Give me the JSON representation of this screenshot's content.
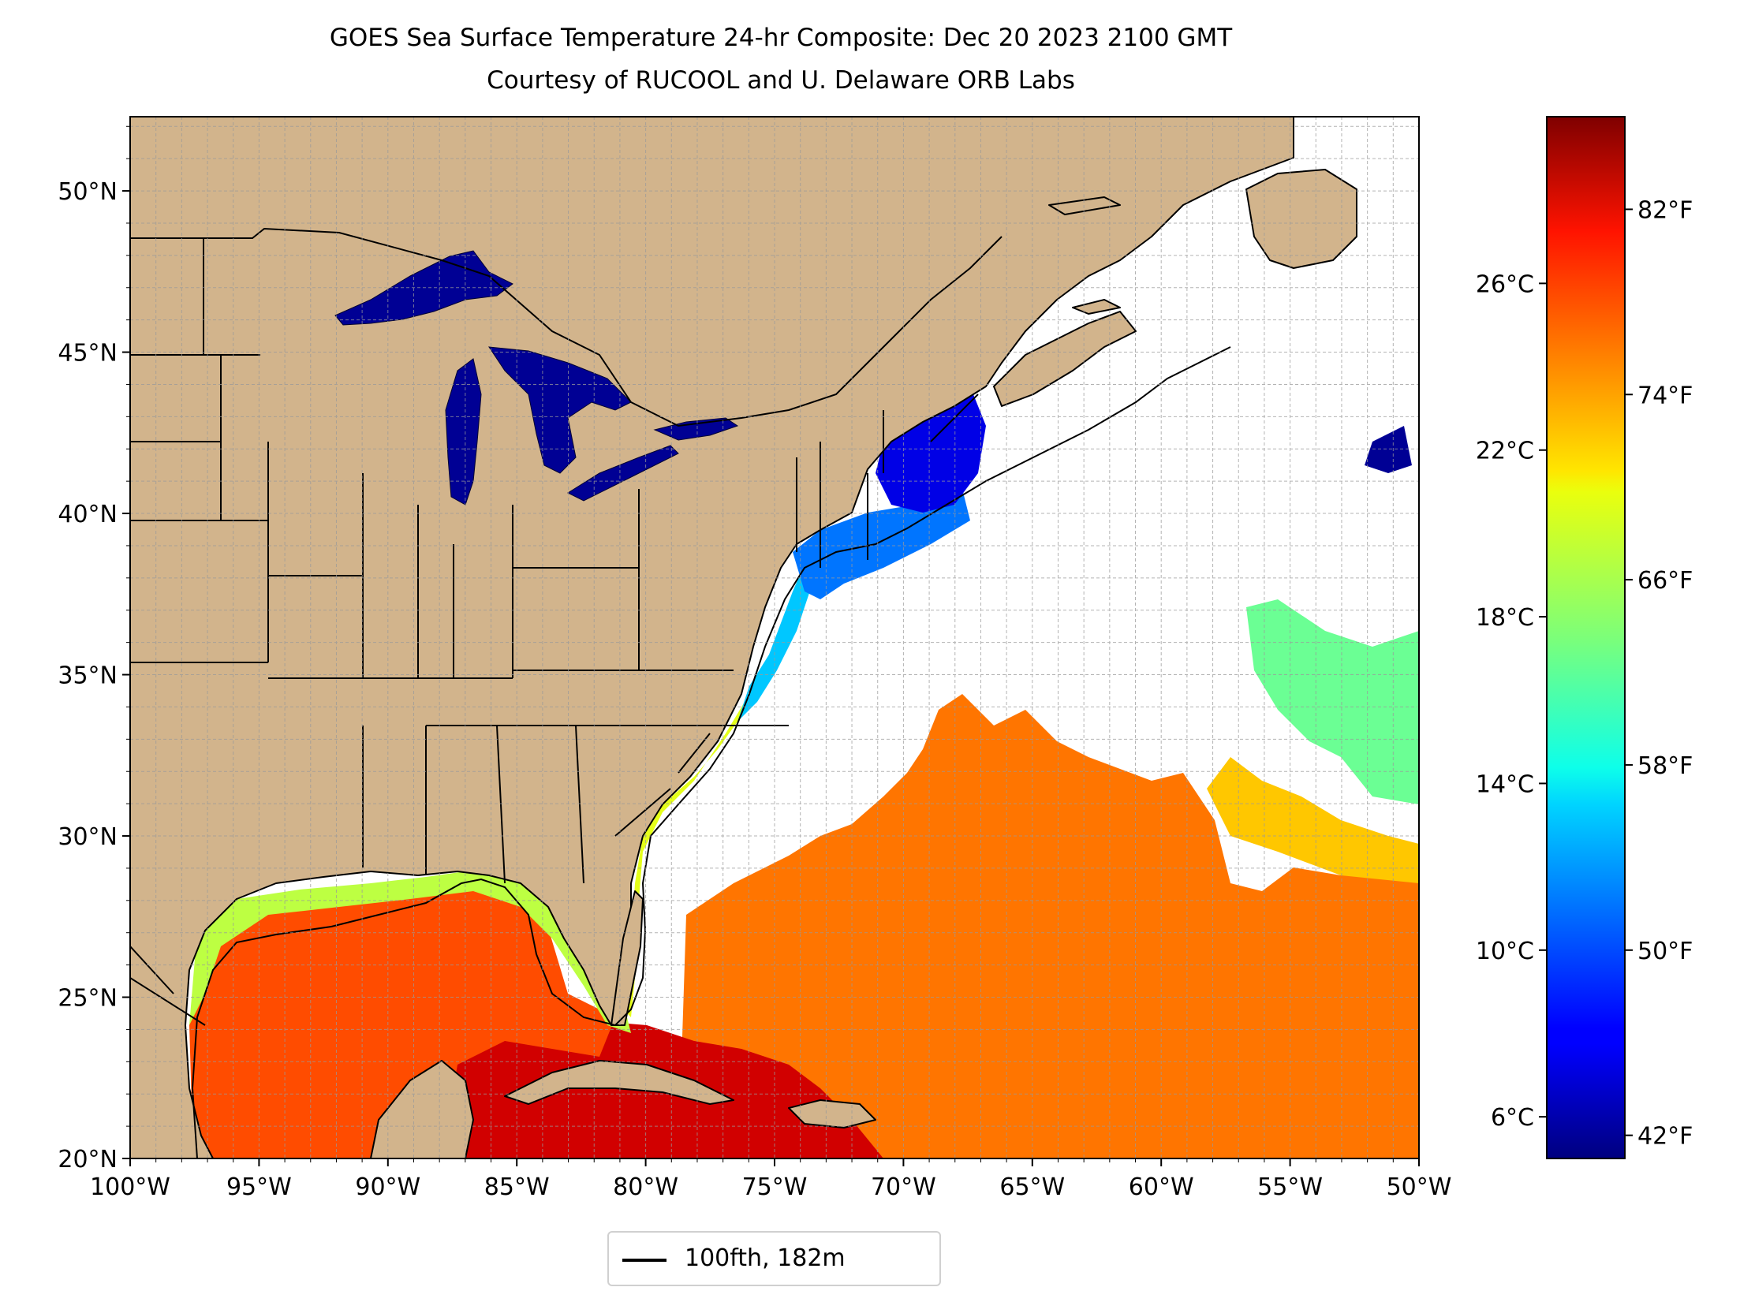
{
  "title": {
    "line1": "GOES Sea Surface Temperature 24-hr Composite: Dec 20 2023 2100 GMT",
    "line2": "Courtesy of RUCOOL and U. Delaware ORB Labs"
  },
  "map": {
    "projection": "PlateCarree",
    "lon_range": [
      -100,
      -50
    ],
    "lat_range": [
      20,
      52.3
    ],
    "gridlines": true,
    "grid_step_deg": 1,
    "land_color": "#d2b48c",
    "no_data_color": "#ffffff",
    "lon_ticks": [
      {
        "value": -100,
        "label": "100°W"
      },
      {
        "value": -95,
        "label": "95°W"
      },
      {
        "value": -90,
        "label": "90°W"
      },
      {
        "value": -85,
        "label": "85°W"
      },
      {
        "value": -80,
        "label": "80°W"
      },
      {
        "value": -75,
        "label": "75°W"
      },
      {
        "value": -70,
        "label": "70°W"
      },
      {
        "value": -65,
        "label": "65°W"
      },
      {
        "value": -60,
        "label": "60°W"
      },
      {
        "value": -55,
        "label": "55°W"
      },
      {
        "value": -50,
        "label": "50°W"
      }
    ],
    "lat_ticks": [
      {
        "value": 20,
        "label": "20°N"
      },
      {
        "value": 25,
        "label": "25°N"
      },
      {
        "value": 30,
        "label": "30°N"
      },
      {
        "value": 35,
        "label": "35°N"
      },
      {
        "value": 40,
        "label": "40°N"
      },
      {
        "value": 45,
        "label": "45°N"
      },
      {
        "value": 50,
        "label": "50°N"
      }
    ]
  },
  "colorbar": {
    "colormap": "jet",
    "range_c": [
      5,
      30
    ],
    "celsius_ticks": [
      {
        "value": 6,
        "label": "6°C"
      },
      {
        "value": 10,
        "label": "10°C"
      },
      {
        "value": 14,
        "label": "14°C"
      },
      {
        "value": 18,
        "label": "18°C"
      },
      {
        "value": 22,
        "label": "22°C"
      },
      {
        "value": 26,
        "label": "26°C"
      }
    ],
    "fahrenheit_ticks": [
      {
        "value": 42,
        "label": "42°F"
      },
      {
        "value": 50,
        "label": "50°F"
      },
      {
        "value": 58,
        "label": "58°F"
      },
      {
        "value": 66,
        "label": "66°F"
      },
      {
        "value": 74,
        "label": "74°F"
      },
      {
        "value": 82,
        "label": "82°F"
      }
    ]
  },
  "legend": {
    "entries": [
      {
        "label": "100fth, 182m",
        "color": "#000000"
      }
    ]
  },
  "regions": {
    "great_lakes_c": 5.5,
    "gulf_of_maine_c": 7.5,
    "new_england_shelf_c": 11,
    "mid_atlantic_shelf_c": 13,
    "se_shelf_c": 20,
    "gulf_shelf_c": 19,
    "gulf_interior_c": 25,
    "sargasso_c": 24,
    "caribbean_c": 28,
    "subtropical_east_c": 22,
    "north_east_patch_c": 17
  }
}
